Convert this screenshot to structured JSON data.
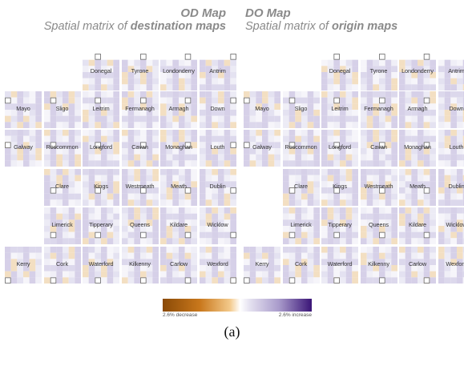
{
  "header_left": {
    "title": "OD Map",
    "subtitle_prefix": "Spatial matrix of ",
    "subtitle_bold": "destination maps"
  },
  "header_right": {
    "title": "DO Map",
    "subtitle_prefix": "Spatial matrix of ",
    "subtitle_bold": "origin maps"
  },
  "counties": [
    {
      "name": "Donegal",
      "row": 0,
      "col": 2
    },
    {
      "name": "Tyrone",
      "row": 0,
      "col": 3
    },
    {
      "name": "Londonderry",
      "row": 0,
      "col": 4
    },
    {
      "name": "Antrim",
      "row": 0,
      "col": 5
    },
    {
      "name": "Mayo",
      "row": 1,
      "col": 0
    },
    {
      "name": "Sligo",
      "row": 1,
      "col": 1
    },
    {
      "name": "Leitrim",
      "row": 1,
      "col": 2
    },
    {
      "name": "Fermanagh",
      "row": 1,
      "col": 3
    },
    {
      "name": "Armagh",
      "row": 1,
      "col": 4
    },
    {
      "name": "Down",
      "row": 1,
      "col": 5
    },
    {
      "name": "Galway",
      "row": 2,
      "col": 0
    },
    {
      "name": "Roscommon",
      "row": 2,
      "col": 1
    },
    {
      "name": "Longford",
      "row": 2,
      "col": 2
    },
    {
      "name": "Cavan",
      "row": 2,
      "col": 3
    },
    {
      "name": "Monaghan",
      "row": 2,
      "col": 4
    },
    {
      "name": "Louth",
      "row": 2,
      "col": 5
    },
    {
      "name": "Clare",
      "row": 3,
      "col": 1
    },
    {
      "name": "Kings",
      "row": 3,
      "col": 2
    },
    {
      "name": "Westmeath",
      "row": 3,
      "col": 3
    },
    {
      "name": "Meath",
      "row": 3,
      "col": 4
    },
    {
      "name": "Dublin",
      "row": 3,
      "col": 5
    },
    {
      "name": "Limerick",
      "row": 4,
      "col": 1
    },
    {
      "name": "Tipperary",
      "row": 4,
      "col": 2
    },
    {
      "name": "Queens",
      "row": 4,
      "col": 3
    },
    {
      "name": "Kildare",
      "row": 4,
      "col": 4
    },
    {
      "name": "Wicklow",
      "row": 4,
      "col": 5
    },
    {
      "name": "Kerry",
      "row": 5,
      "col": 0
    },
    {
      "name": "Cork",
      "row": 5,
      "col": 1
    },
    {
      "name": "Waterford",
      "row": 5,
      "col": 2
    },
    {
      "name": "Kilkenny",
      "row": 5,
      "col": 3
    },
    {
      "name": "Carlow",
      "row": 5,
      "col": 4
    },
    {
      "name": "Wexford",
      "row": 5,
      "col": 5
    }
  ],
  "legend": {
    "decrease_label": "2.6% decrease",
    "increase_label": "2.6% increase",
    "colors": [
      "#8a4a07",
      "#c9781c",
      "#f3c98a",
      "#ffffff",
      "#e6e3f1",
      "#a99bcb",
      "#3a1577"
    ]
  },
  "caption": "(a)"
}
